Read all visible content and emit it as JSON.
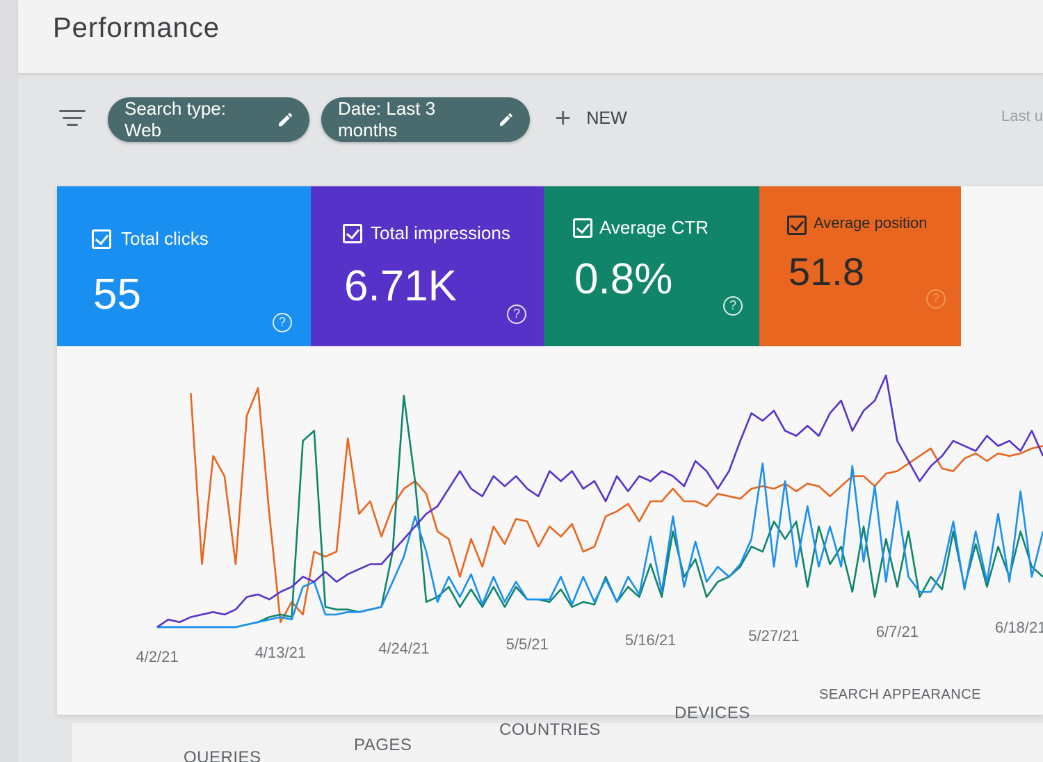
{
  "header": {
    "title": "Performance"
  },
  "filters": {
    "search_type_chip": "Search type: Web",
    "date_chip": "Date: Last 3 months",
    "new_label": "NEW",
    "last_label": "Last u"
  },
  "metrics": {
    "total_clicks": {
      "label": "Total clicks",
      "value": "55",
      "color": "#1a8ff2"
    },
    "total_impressions": {
      "label": "Total impressions",
      "value": "6.71K",
      "color": "#5732c9"
    },
    "average_ctr": {
      "label": "Average CTR",
      "value": "0.8%",
      "color": "#10856a"
    },
    "average_position": {
      "label": "Average position",
      "value": "51.8",
      "color": "#e8661f"
    }
  },
  "chart_data": {
    "type": "line",
    "x": [
      "4/2/21",
      "4/3/21",
      "4/4/21",
      "4/5/21",
      "4/6/21",
      "4/7/21",
      "4/8/21",
      "4/9/21",
      "4/10/21",
      "4/11/21",
      "4/12/21",
      "4/13/21",
      "4/14/21",
      "4/15/21",
      "4/16/21",
      "4/17/21",
      "4/18/21",
      "4/19/21",
      "4/20/21",
      "4/21/21",
      "4/22/21",
      "4/23/21",
      "4/24/21",
      "4/25/21",
      "4/26/21",
      "4/27/21",
      "4/28/21",
      "4/29/21",
      "4/30/21",
      "5/1/21",
      "5/2/21",
      "5/3/21",
      "5/4/21",
      "5/5/21",
      "5/6/21",
      "5/7/21",
      "5/8/21",
      "5/9/21",
      "5/10/21",
      "5/11/21",
      "5/12/21",
      "5/13/21",
      "5/14/21",
      "5/15/21",
      "5/16/21",
      "5/17/21",
      "5/18/21",
      "5/19/21",
      "5/20/21",
      "5/21/21",
      "5/22/21",
      "5/23/21",
      "5/24/21",
      "5/25/21",
      "5/26/21",
      "5/27/21",
      "5/28/21",
      "5/29/21",
      "5/30/21",
      "5/31/21",
      "6/1/21",
      "6/2/21",
      "6/3/21",
      "6/4/21",
      "6/5/21",
      "6/6/21",
      "6/7/21",
      "6/8/21",
      "6/9/21",
      "6/10/21",
      "6/11/21",
      "6/12/21",
      "6/13/21",
      "6/14/21",
      "6/15/21",
      "6/16/21",
      "6/17/21",
      "6/18/21",
      "6/19/21",
      "6/20/21"
    ],
    "x_tick_labels": [
      "4/2/21",
      "4/13/21",
      "4/24/21",
      "5/5/21",
      "5/16/21",
      "5/27/21",
      "6/7/21",
      "6/18/21"
    ],
    "series": [
      {
        "color": "#e8661f",
        "values": [
          null,
          null,
          null,
          0.93,
          0.25,
          0.68,
          0.6,
          0.25,
          0.84,
          0.95,
          0.45,
          0.02,
          0.1,
          0.05,
          0.3,
          0.28,
          0.3,
          0.75,
          0.45,
          0.5,
          0.36,
          0.48,
          0.55,
          0.58,
          0.53,
          0.38,
          0.35,
          0.2,
          0.35,
          0.24,
          0.4,
          0.33,
          0.43,
          0.42,
          0.32,
          0.4,
          0.36,
          0.41,
          0.3,
          0.32,
          0.44,
          0.46,
          0.49,
          0.42,
          0.5,
          0.5,
          0.55,
          0.5,
          0.5,
          0.48,
          0.53,
          0.52,
          0.51,
          0.55,
          0.56,
          0.55,
          0.57,
          0.54,
          0.57,
          0.56,
          0.52,
          0.56,
          0.6,
          0.6,
          0.56,
          0.61,
          0.62,
          0.65,
          0.68,
          0.71,
          0.63,
          0.62,
          0.67,
          0.69,
          0.66,
          0.69,
          0.68,
          0.69,
          0.71,
          0.72
        ]
      },
      {
        "color": "#10856a",
        "values": [
          0,
          0,
          0,
          0,
          0,
          0,
          0,
          0,
          0.01,
          0.02,
          0.04,
          0.05,
          0.04,
          0.74,
          0.78,
          0.08,
          0.07,
          0.07,
          0.06,
          0.07,
          0.08,
          0.3,
          0.92,
          0.58,
          0.1,
          0.12,
          0.16,
          0.08,
          0.15,
          0.08,
          0.16,
          0.08,
          0.16,
          0.11,
          0.11,
          0.1,
          0.15,
          0.08,
          0.1,
          0.09,
          0.2,
          0.1,
          0.16,
          0.12,
          0.25,
          0.12,
          0.38,
          0.2,
          0.27,
          0.12,
          0.18,
          0.2,
          0.24,
          0.32,
          0.3,
          0.42,
          0.35,
          0.42,
          0.16,
          0.4,
          0.25,
          0.32,
          0.14,
          0.4,
          0.12,
          0.35,
          0.16,
          0.38,
          0.12,
          0.2,
          0.15,
          0.38,
          0.16,
          0.33,
          0.16,
          0.32,
          0.2,
          0.38,
          0.24,
          0.2
        ]
      },
      {
        "color": "#1a8ff2",
        "values": [
          0,
          0,
          0,
          0,
          0,
          0,
          0,
          0,
          0.01,
          0.02,
          0.03,
          0.04,
          0.03,
          0.16,
          0.18,
          0.05,
          0.05,
          0.06,
          0.06,
          0.07,
          0.08,
          0.18,
          0.28,
          0.44,
          0.3,
          0.1,
          0.2,
          0.12,
          0.21,
          0.09,
          0.2,
          0.1,
          0.18,
          0.11,
          0.11,
          0.11,
          0.2,
          0.09,
          0.2,
          0.1,
          0.19,
          0.1,
          0.2,
          0.13,
          0.36,
          0.14,
          0.44,
          0.16,
          0.34,
          0.18,
          0.24,
          0.2,
          0.25,
          0.35,
          0.65,
          0.24,
          0.58,
          0.24,
          0.48,
          0.24,
          0.4,
          0.24,
          0.64,
          0.26,
          0.56,
          0.18,
          0.5,
          0.2,
          0.14,
          0.14,
          0.22,
          0.42,
          0.15,
          0.38,
          0.18,
          0.45,
          0.18,
          0.54,
          0.2,
          0.38
        ]
      },
      {
        "color": "#5732c9",
        "values": [
          0,
          0.03,
          0.02,
          0.04,
          0.05,
          0.06,
          0.05,
          0.07,
          0.12,
          0.13,
          0.11,
          0.14,
          0.16,
          0.2,
          0.18,
          0.22,
          0.18,
          0.21,
          0.23,
          0.25,
          0.25,
          0.3,
          0.35,
          0.4,
          0.45,
          0.48,
          0.55,
          0.62,
          0.55,
          0.52,
          0.6,
          0.56,
          0.6,
          0.55,
          0.52,
          0.62,
          0.58,
          0.62,
          0.55,
          0.58,
          0.5,
          0.6,
          0.54,
          0.6,
          0.58,
          0.62,
          0.6,
          0.56,
          0.66,
          0.62,
          0.55,
          0.62,
          0.74,
          0.85,
          0.82,
          0.86,
          0.78,
          0.76,
          0.8,
          0.76,
          0.85,
          0.9,
          0.78,
          0.86,
          0.9,
          1.0,
          0.74,
          0.66,
          0.58,
          0.64,
          0.68,
          0.74,
          0.72,
          0.7,
          0.76,
          0.72,
          0.74,
          0.7,
          0.78,
          0.68
        ]
      }
    ],
    "ylim": [
      0,
      1
    ],
    "grid": false,
    "legend": "none"
  },
  "tabs": [
    "QUERIES",
    "PAGES",
    "COUNTRIES",
    "DEVICES",
    "SEARCH APPEARANCE"
  ]
}
